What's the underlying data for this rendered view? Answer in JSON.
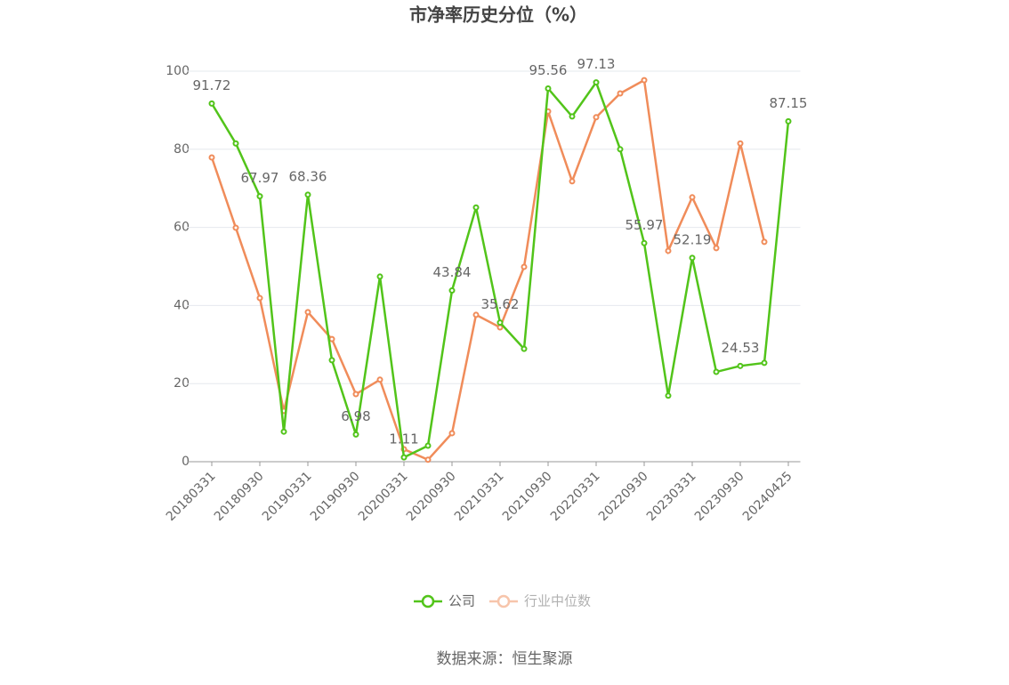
{
  "chart_data": {
    "type": "line",
    "title": "市净率历史分位（%）",
    "categories": [
      "20180331",
      null,
      "20180930",
      null,
      "20190331",
      null,
      "20190930",
      null,
      "20200331",
      null,
      "20200930",
      null,
      "20210331",
      null,
      "20210930",
      null,
      "20220331",
      null,
      "20220930",
      null,
      "20230331",
      null,
      "20230930",
      null,
      "20240425"
    ],
    "series": [
      {
        "name": "公司",
        "color": "#52c41a",
        "values": [
          91.72,
          81.5,
          67.97,
          7.7,
          68.36,
          26.0,
          6.98,
          47.4,
          1.11,
          4.1,
          43.84,
          65.1,
          35.62,
          28.9,
          95.56,
          88.4,
          97.13,
          80.0,
          55.97,
          16.9,
          52.19,
          23.0,
          24.53,
          25.3,
          87.15
        ]
      },
      {
        "name": "行业中位数",
        "color": "#f08c5a",
        "values": [
          77.9,
          59.9,
          41.9,
          13.0,
          38.3,
          31.4,
          17.3,
          21.0,
          3.2,
          0.5,
          7.3,
          37.6,
          34.4,
          49.9,
          89.7,
          71.8,
          88.2,
          94.3,
          97.7,
          54.0,
          67.7,
          54.7,
          81.5,
          56.3,
          null
        ]
      }
    ],
    "ylim": [
      0,
      100
    ],
    "yticks": [
      0,
      20,
      40,
      60,
      80,
      100
    ],
    "grid": true,
    "legend": "bottom",
    "source": "数据来源：恒生聚源"
  }
}
